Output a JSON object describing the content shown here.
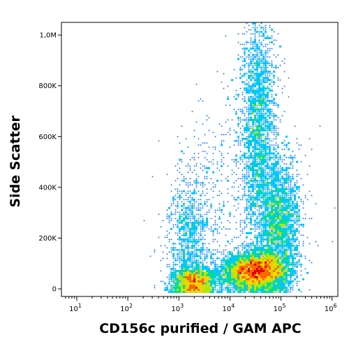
{
  "chart_data": {
    "type": "scatter",
    "subtype": "density-dot-plot",
    "title": "",
    "xlabel": "CD156c purified / GAM APC",
    "ylabel": "Side Scatter",
    "x_scale": "log",
    "xlim": [
      5,
      1300000
    ],
    "ylim": [
      -30000,
      1050000
    ],
    "x_ticks": [
      {
        "value": 10,
        "base": "10",
        "exp": "1"
      },
      {
        "value": 100,
        "base": "10",
        "exp": "2"
      },
      {
        "value": 1000,
        "base": "10",
        "exp": "3"
      },
      {
        "value": 10000,
        "base": "10",
        "exp": "4"
      },
      {
        "value": 100000,
        "base": "10",
        "exp": "5"
      },
      {
        "value": 1000000,
        "base": "10",
        "exp": "6"
      }
    ],
    "y_ticks": [
      {
        "value": 0,
        "label": "0"
      },
      {
        "value": 200000,
        "label": "200K"
      },
      {
        "value": 400000,
        "label": "400K"
      },
      {
        "value": 600000,
        "label": "600K"
      },
      {
        "value": 800000,
        "label": "800K"
      },
      {
        "value": 1000000,
        "label": "1,0M"
      }
    ],
    "populations": [
      {
        "x_log_mean": 3.3,
        "x_log_sd": 0.22,
        "y_mean": 30000,
        "y_sd": 30000,
        "weight": 1800
      },
      {
        "x_log_mean": 3.2,
        "x_log_sd": 0.22,
        "y_mean": 200000,
        "y_sd": 140000,
        "weight": 900
      },
      {
        "x_log_mean": 4.5,
        "x_log_sd": 0.3,
        "y_mean": 70000,
        "y_sd": 35000,
        "weight": 4500
      },
      {
        "x_log_mean": 4.95,
        "x_log_sd": 0.22,
        "y_mean": 250000,
        "y_sd": 140000,
        "weight": 2200
      },
      {
        "x_log_mean": 4.55,
        "x_log_sd": 0.18,
        "y_mean": 650000,
        "y_sd": 230000,
        "weight": 2000
      },
      {
        "x_log_mean": 4.1,
        "x_log_sd": 0.6,
        "y_mean": 300000,
        "y_sd": 250000,
        "weight": 700
      }
    ],
    "density_colors": [
      "#0000cc",
      "#0066ff",
      "#00c8ff",
      "#00e08a",
      "#b4e600",
      "#ffd200",
      "#ff6600",
      "#e00000"
    ],
    "grid": false,
    "legend": "none"
  }
}
